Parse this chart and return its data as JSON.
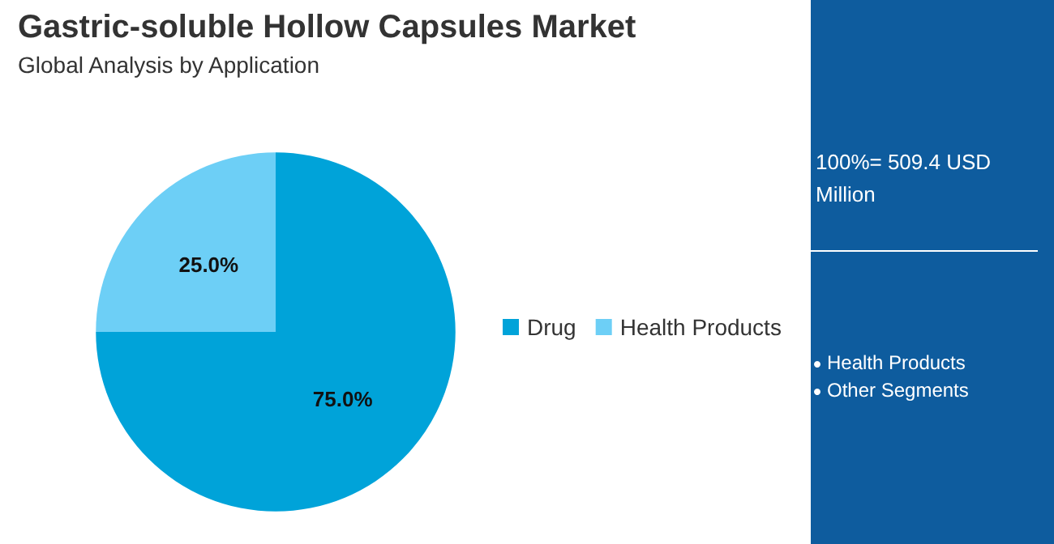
{
  "chart_data": {
    "type": "pie",
    "title": "Gastric-soluble Hollow Capsules Market",
    "subtitle": "Global Analysis by Application",
    "categories": [
      "Drug",
      "Health Products"
    ],
    "values": [
      75,
      25
    ],
    "colors": [
      "#00a3d9",
      "#6dcff6"
    ],
    "value_labels": [
      "75.0%",
      "25.0%"
    ],
    "legend": "right",
    "annotations": [
      "100%= 509.4 USD Million",
      "Health Products",
      "Other Segments"
    ]
  }
}
